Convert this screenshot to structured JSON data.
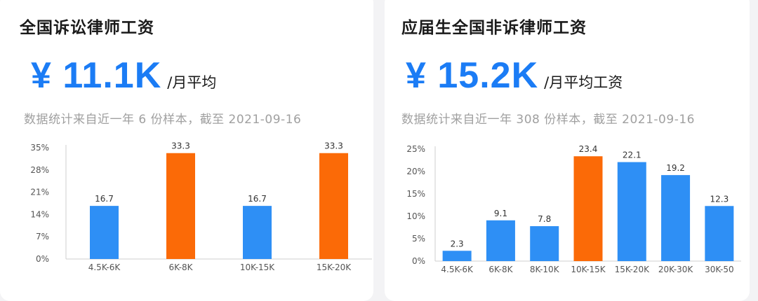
{
  "left": {
    "title": "全国诉讼律师工资",
    "salary": "¥ 11.1K",
    "unit": "/月平均",
    "stats": "数据统计来自近一年 6 份样本，截至 2021-09-16"
  },
  "right": {
    "title": "应届生全国非诉律师工资",
    "salary": "¥ 15.2K",
    "unit": "/月平均工资",
    "stats": "数据统计来自近一年 308 份样本，截至 2021-09-16"
  },
  "colors": {
    "blue": "#2e8ff5",
    "orange": "#fb6a07"
  },
  "chart_data": [
    {
      "type": "bar",
      "categories": [
        "4.5K-6K",
        "6K-8K",
        "10K-15K",
        "15K-20K"
      ],
      "values": [
        16.7,
        33.3,
        16.7,
        33.3
      ],
      "highlight": [
        false,
        true,
        false,
        true
      ],
      "yticks": [
        "0%",
        "7%",
        "14%",
        "21%",
        "28%",
        "35%"
      ],
      "ylim": [
        0,
        35
      ],
      "grid": false
    },
    {
      "type": "bar",
      "categories": [
        "4.5K-6K",
        "6K-8K",
        "8K-10K",
        "10K-15K",
        "15K-20K",
        "20K-30K",
        "30K-50"
      ],
      "values": [
        2.3,
        9.1,
        7.8,
        23.4,
        22.1,
        19.2,
        12.3
      ],
      "highlight": [
        false,
        false,
        false,
        true,
        false,
        false,
        false
      ],
      "yticks": [
        "0%",
        "5%",
        "10%",
        "15%",
        "20%",
        "25%"
      ],
      "ylim": [
        0,
        25
      ],
      "grid": false
    }
  ]
}
